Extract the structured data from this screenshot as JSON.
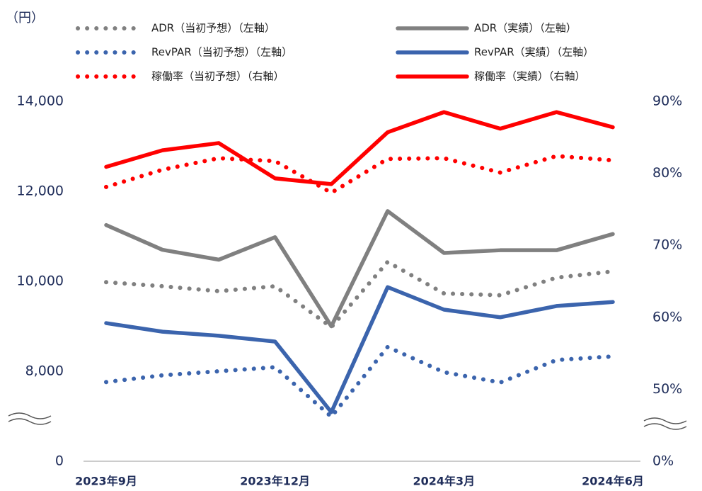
{
  "chart_data": {
    "type": "line",
    "y_label": "（円）",
    "categories": [
      "2023年9月",
      null,
      null,
      "2023年12月",
      null,
      null,
      "2024年3月",
      null,
      null,
      "2024年6月"
    ],
    "series": [
      {
        "name": "ADR（当初予想）（左軸）",
        "color": "#808080",
        "style": "dotted",
        "axis": "y",
        "values": [
          9980,
          9890,
          9780,
          9890,
          8980,
          10430,
          9730,
          9690,
          10080,
          10220
        ]
      },
      {
        "name": "ADR（実績）（左軸）",
        "color": "#808080",
        "style": "solid",
        "axis": "y",
        "values": [
          11250,
          10700,
          10480,
          10980,
          9000,
          11560,
          10630,
          10690,
          10690,
          11050
        ]
      },
      {
        "name": "RevPAR（当初予想）（左軸）",
        "color": "#3b64ad",
        "style": "dotted",
        "axis": "y",
        "values": [
          7760,
          7910,
          8000,
          8090,
          6990,
          8540,
          7980,
          7750,
          8250,
          8330
        ]
      },
      {
        "name": "RevPAR（実績）（左軸）",
        "color": "#3b64ad",
        "style": "solid",
        "axis": "y",
        "values": [
          9070,
          8880,
          8790,
          8660,
          7090,
          9870,
          9370,
          9200,
          9450,
          9540
        ]
      },
      {
        "name": "稼働率（当初予想）（右軸）",
        "color": "#ff0000",
        "style": "dotted",
        "axis": "y2",
        "values": [
          78.1,
          80.5,
          82.1,
          81.7,
          77.3,
          82.0,
          82.1,
          80.1,
          82.4,
          81.8
        ]
      },
      {
        "name": "稼働率（実績）（右軸）",
        "color": "#ff0000",
        "style": "solid",
        "axis": "y2",
        "values": [
          80.9,
          83.2,
          84.2,
          79.3,
          78.5,
          85.7,
          88.5,
          86.2,
          88.5,
          86.4
        ]
      }
    ],
    "ylim": [
      0,
      14000
    ],
    "yticks": [
      0,
      {
        "value": 8000,
        "label": "8,000"
      },
      {
        "value": 10000,
        "label": "10,000"
      },
      {
        "value": 12000,
        "label": "12,000"
      },
      {
        "value": 14000,
        "label": "14,000"
      }
    ],
    "y2lim": [
      0,
      90
    ],
    "y2ticks": [
      {
        "value": 0,
        "label": "0%"
      },
      {
        "value": 50,
        "label": "50%"
      },
      {
        "value": 60,
        "label": "60%"
      },
      {
        "value": 70,
        "label": "70%"
      },
      {
        "value": 80,
        "label": "80%"
      },
      {
        "value": 90,
        "label": "90%"
      }
    ],
    "axis_break": true,
    "grid": false
  }
}
